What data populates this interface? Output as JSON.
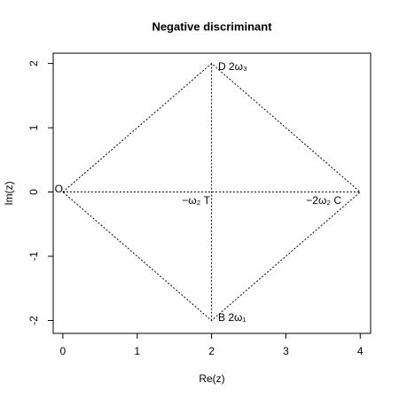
{
  "chart_data": {
    "type": "line",
    "title": "Negative discriminant",
    "xlabel": "Re(z)",
    "ylabel": "Im(z)",
    "series": [
      {
        "color": "#000000",
        "x": [
          0,
          2,
          4,
          2,
          0
        ],
        "values": [
          0,
          2,
          0,
          -2,
          0
        ]
      },
      {
        "color": "#000000",
        "x": [
          0,
          4
        ],
        "values": [
          0,
          0
        ]
      },
      {
        "color": "#000000",
        "x": [
          2,
          2
        ],
        "values": [
          2,
          -2
        ]
      }
    ],
    "xlim": [
      -0.13,
      4.14
    ],
    "xticks": [
      0,
      1,
      2,
      3,
      4
    ],
    "ylim": [
      -2.2,
      2.16
    ],
    "yticks": [
      -2,
      -1,
      0,
      1,
      2
    ],
    "annotations": [
      "O",
      "D  2ω₃",
      "−ω₂  T",
      "−2ω₂  C",
      "B  2ω₁"
    ],
    "grid": false
  }
}
